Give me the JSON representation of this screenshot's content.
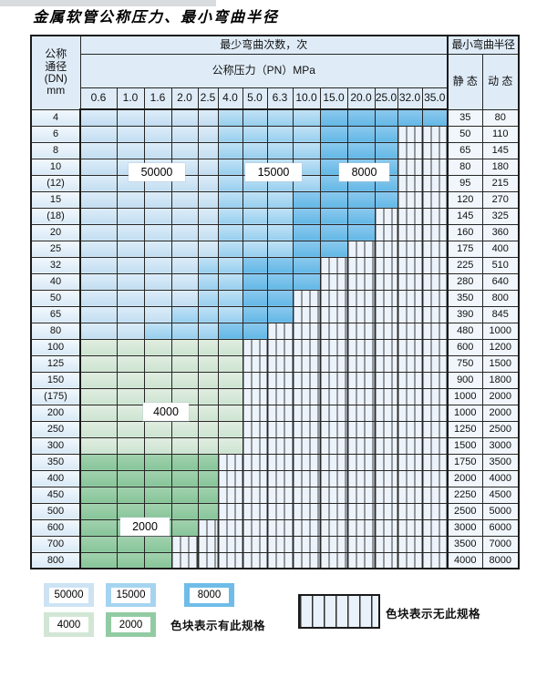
{
  "title": "金属软管公称压力、最小弯曲半径",
  "table": {
    "header": {
      "dn_label_lines": [
        "公称",
        "通径",
        "(DN)",
        "mm"
      ],
      "cycles_header": "最少弯曲次数，次",
      "pressure_header": "公称压力（PN）MPa",
      "radius_header": "最小弯曲半径",
      "static_label": "静 态",
      "dynamic_label": "动 态",
      "pressure_columns": [
        "0.6",
        "1.0",
        "1.6",
        "2.0",
        "2.5",
        "4.0",
        "5.0",
        "6.3",
        "10.0",
        "15.0",
        "20.0",
        "25.0",
        "32.0",
        "35.0"
      ]
    },
    "rows": [
      {
        "dn": "4",
        "static": "35",
        "dynamic": "80",
        "bands": [
          [
            "50000",
            5
          ],
          [
            "15000",
            4
          ],
          [
            "8000",
            5
          ]
        ]
      },
      {
        "dn": "6",
        "static": "50",
        "dynamic": "110",
        "bands": [
          [
            "50000",
            5
          ],
          [
            "15000",
            4
          ],
          [
            "8000",
            3
          ]
        ]
      },
      {
        "dn": "8",
        "static": "65",
        "dynamic": "145",
        "bands": [
          [
            "50000",
            5
          ],
          [
            "15000",
            4
          ],
          [
            "8000",
            3
          ]
        ]
      },
      {
        "dn": "10",
        "static": "80",
        "dynamic": "180",
        "bands": [
          [
            "50000",
            5
          ],
          [
            "15000",
            4
          ],
          [
            "8000",
            3
          ]
        ]
      },
      {
        "dn": "(12)",
        "static": "95",
        "dynamic": "215",
        "bands": [
          [
            "50000",
            5
          ],
          [
            "15000",
            4
          ],
          [
            "8000",
            3
          ]
        ]
      },
      {
        "dn": "15",
        "static": "120",
        "dynamic": "270",
        "bands": [
          [
            "50000",
            5
          ],
          [
            "15000",
            3
          ],
          [
            "8000",
            4
          ]
        ]
      },
      {
        "dn": "(18)",
        "static": "145",
        "dynamic": "325",
        "bands": [
          [
            "50000",
            5
          ],
          [
            "15000",
            3
          ],
          [
            "8000",
            3
          ]
        ]
      },
      {
        "dn": "20",
        "static": "160",
        "dynamic": "360",
        "bands": [
          [
            "50000",
            5
          ],
          [
            "15000",
            3
          ],
          [
            "8000",
            3
          ]
        ]
      },
      {
        "dn": "25",
        "static": "175",
        "dynamic": "400",
        "bands": [
          [
            "50000",
            5
          ],
          [
            "15000",
            3
          ],
          [
            "8000",
            2
          ]
        ]
      },
      {
        "dn": "32",
        "static": "225",
        "dynamic": "510",
        "bands": [
          [
            "50000",
            4
          ],
          [
            "15000",
            2
          ],
          [
            "8000",
            3
          ]
        ]
      },
      {
        "dn": "40",
        "static": "280",
        "dynamic": "640",
        "bands": [
          [
            "50000",
            4
          ],
          [
            "15000",
            2
          ],
          [
            "8000",
            3
          ]
        ]
      },
      {
        "dn": "50",
        "static": "350",
        "dynamic": "800",
        "bands": [
          [
            "50000",
            4
          ],
          [
            "15000",
            2
          ],
          [
            "8000",
            2
          ]
        ]
      },
      {
        "dn": "65",
        "static": "390",
        "dynamic": "845",
        "bands": [
          [
            "50000",
            3
          ],
          [
            "15000",
            3
          ],
          [
            "8000",
            2
          ]
        ]
      },
      {
        "dn": "80",
        "static": "480",
        "dynamic": "1000",
        "bands": [
          [
            "50000",
            2
          ],
          [
            "15000",
            3
          ],
          [
            "8000",
            2
          ]
        ]
      },
      {
        "dn": "100",
        "static": "600",
        "dynamic": "1200",
        "bands": [
          [
            "4000",
            6
          ]
        ]
      },
      {
        "dn": "125",
        "static": "750",
        "dynamic": "1500",
        "bands": [
          [
            "4000",
            6
          ]
        ]
      },
      {
        "dn": "150",
        "static": "900",
        "dynamic": "1800",
        "bands": [
          [
            "4000",
            6
          ]
        ]
      },
      {
        "dn": "(175)",
        "static": "1000",
        "dynamic": "2000",
        "bands": [
          [
            "4000",
            6
          ]
        ]
      },
      {
        "dn": "200",
        "static": "1000",
        "dynamic": "2000",
        "bands": [
          [
            "4000",
            6
          ]
        ]
      },
      {
        "dn": "250",
        "static": "1250",
        "dynamic": "2500",
        "bands": [
          [
            "4000",
            6
          ]
        ]
      },
      {
        "dn": "300",
        "static": "1500",
        "dynamic": "3000",
        "bands": [
          [
            "4000",
            6
          ]
        ]
      },
      {
        "dn": "350",
        "static": "1750",
        "dynamic": "3500",
        "bands": [
          [
            "2000",
            5
          ]
        ]
      },
      {
        "dn": "400",
        "static": "2000",
        "dynamic": "4000",
        "bands": [
          [
            "2000",
            5
          ]
        ]
      },
      {
        "dn": "450",
        "static": "2250",
        "dynamic": "4500",
        "bands": [
          [
            "2000",
            5
          ]
        ]
      },
      {
        "dn": "500",
        "static": "2500",
        "dynamic": "5000",
        "bands": [
          [
            "2000",
            5
          ]
        ]
      },
      {
        "dn": "600",
        "static": "3000",
        "dynamic": "6000",
        "bands": [
          [
            "2000",
            4
          ]
        ]
      },
      {
        "dn": "700",
        "static": "3500",
        "dynamic": "7000",
        "bands": [
          [
            "2000",
            3
          ]
        ]
      },
      {
        "dn": "800",
        "static": "4000",
        "dynamic": "8000",
        "bands": [
          [
            "2000",
            3
          ]
        ]
      }
    ]
  },
  "cycle_labels": {
    "c50000": "50000",
    "c15000": "15000",
    "c8000": "8000",
    "c4000": "4000",
    "c2000": "2000"
  },
  "colors": {
    "cycle_50000": "#cde3f4",
    "cycle_15000": "#a5d4f0",
    "cycle_8000": "#6fbce8",
    "cycle_4000": "#d2e6d5",
    "cycle_2000": "#92cba3",
    "no_spec_stripe": "#3c3c3c",
    "no_spec_bg": "#edf3fb"
  },
  "legend": {
    "swatches": [
      {
        "label": "50000",
        "color": "#cde3f4"
      },
      {
        "label": "15000",
        "color": "#a5d4f0"
      },
      {
        "label": "8000",
        "color": "#6fbce8"
      },
      {
        "label": "4000",
        "color": "#d2e6d5"
      },
      {
        "label": "2000",
        "color": "#92cba3"
      }
    ],
    "available_text": "色块表示有此规格",
    "unavailable_text": "色块表示无此规格"
  }
}
